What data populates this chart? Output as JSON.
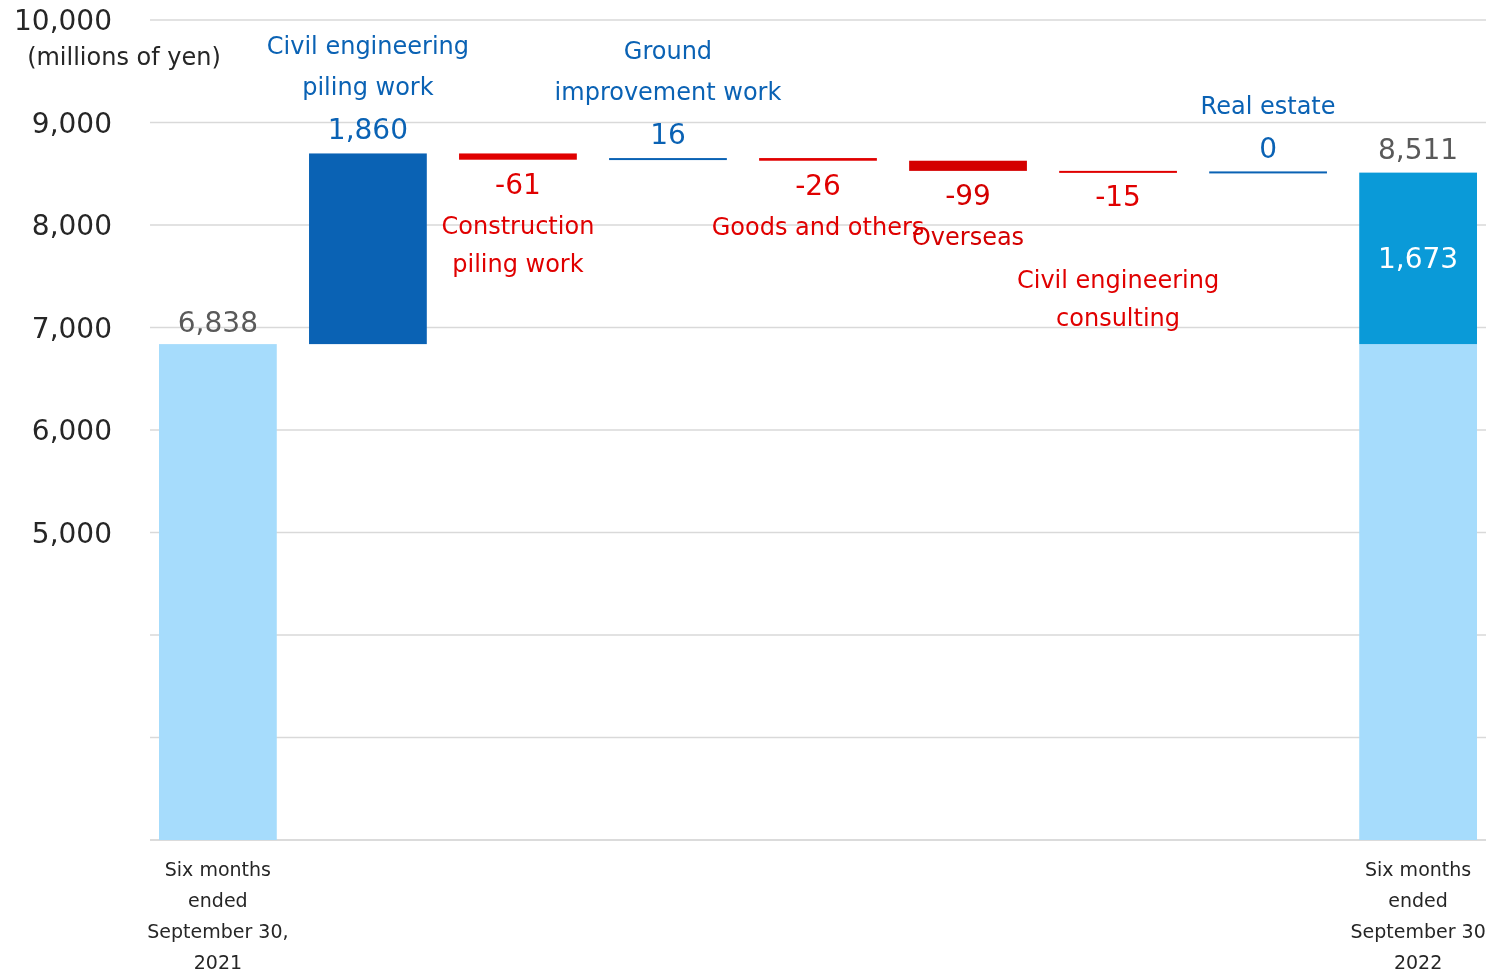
{
  "chart_data": {
    "type": "bar",
    "stacked": true,
    "ylabel": "(millions of yen)",
    "categories": [
      "Six months ended September 30, 2021",
      "Civil engineering piling work",
      "Construction piling work",
      "Ground improvement work",
      "Goods and others",
      "Overseas",
      "Civil engineering consulting",
      "Real estate",
      "Six months ended September 30 2022"
    ],
    "series": [
      {
        "values": [
          6838,
          null,
          null,
          null,
          null,
          null,
          null,
          null,
          6838
        ],
        "colors": [
          "#a6dcfc",
          null,
          null,
          null,
          null,
          null,
          null,
          null,
          "#a6dcfc"
        ],
        "value_labels": [
          "6,838",
          null,
          null,
          null,
          null,
          null,
          null,
          null,
          null
        ]
      },
      {
        "values": [
          null,
          1860,
          -61,
          16,
          -26,
          -99,
          -15,
          0,
          1673
        ],
        "base": [
          null,
          6838,
          8698,
          8637,
          8653,
          8627,
          8528,
          8513,
          null
        ],
        "colors": [
          null,
          "#0a62b4",
          "#e00000",
          "#0a62b4",
          "#e00000",
          "#d40000",
          "#e00000",
          "#0a62b4",
          "#0a9ad8"
        ],
        "value_labels": [
          null,
          "1,860",
          "-61",
          "16",
          "-26",
          "-99",
          "-15",
          "0",
          "1,673"
        ]
      }
    ],
    "totals": [
      null,
      null,
      null,
      null,
      null,
      null,
      null,
      null,
      "8,511"
    ],
    "ylim": [
      2000,
      10000
    ],
    "yticks": [
      {
        "value": 2000,
        "label": null
      },
      {
        "value": 3000,
        "label": null
      },
      {
        "value": 4000,
        "label": null
      },
      {
        "value": 5000,
        "label": "5,000"
      },
      {
        "value": 6000,
        "label": "6,000"
      },
      {
        "value": 7000,
        "label": "7,000"
      },
      {
        "value": 8000,
        "label": "8,000"
      },
      {
        "value": 9000,
        "label": "9,000"
      },
      {
        "value": 10000,
        "label": "10,000"
      }
    ],
    "grid": "y"
  }
}
